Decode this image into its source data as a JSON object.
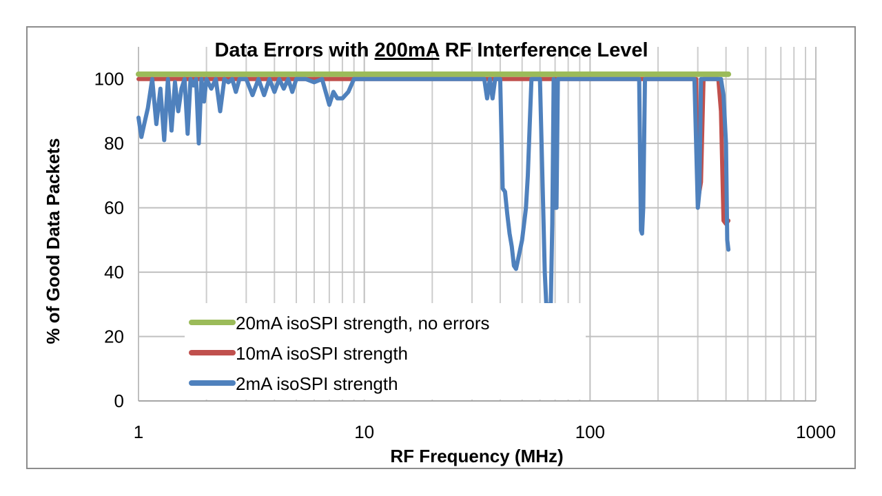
{
  "chart_data": {
    "type": "line",
    "title": {
      "prefix": "Data Errors with ",
      "emphasis": "200mA",
      "suffix": " RF Interference Level"
    },
    "xlabel": "RF Frequency (MHz)",
    "ylabel": "% of Good Data Packets",
    "xscale": "log",
    "xlim": [
      1,
      1000
    ],
    "ylim": [
      0,
      110
    ],
    "xticks": [
      1,
      10,
      100,
      1000
    ],
    "xtick_labels": [
      "1",
      "10",
      "100",
      "1000"
    ],
    "yticks": [
      0,
      20,
      40,
      60,
      80,
      100
    ],
    "ytick_labels": [
      "0",
      "20",
      "40",
      "60",
      "80",
      "100"
    ],
    "grid": true,
    "legend_position": "bottom-left",
    "series": [
      {
        "name": "20mA isoSPI strength, no errors",
        "color": "#9bbb59",
        "x": [
          1,
          410
        ],
        "y": [
          101.5,
          101.5
        ]
      },
      {
        "name": "10mA isoSPI strength",
        "color": "#c0504d",
        "x": [
          1,
          2,
          5,
          9,
          40,
          60,
          70,
          100,
          200,
          280,
          295,
          300,
          310,
          318,
          325,
          340,
          370,
          380,
          390,
          400,
          410
        ],
        "y": [
          100,
          100,
          100,
          100,
          100,
          100,
          100,
          100,
          100,
          100,
          100,
          62,
          68,
          100,
          100,
          100,
          100,
          90,
          56,
          55,
          56
        ]
      },
      {
        "name": "2mA isoSPI strength",
        "color": "#4f81bd",
        "x": [
          1,
          1.03,
          1.06,
          1.1,
          1.15,
          1.2,
          1.25,
          1.3,
          1.35,
          1.4,
          1.45,
          1.5,
          1.55,
          1.6,
          1.65,
          1.7,
          1.75,
          1.8,
          1.85,
          1.9,
          1.95,
          2.0,
          2.1,
          2.2,
          2.3,
          2.4,
          2.5,
          2.6,
          2.7,
          2.8,
          3.0,
          3.2,
          3.4,
          3.6,
          3.8,
          4.0,
          4.2,
          4.4,
          4.6,
          4.8,
          5.0,
          5.5,
          6.0,
          6.5,
          7.0,
          7.3,
          7.6,
          8.0,
          8.5,
          9.0,
          10,
          20,
          34,
          35,
          36,
          37,
          38,
          40,
          41,
          42,
          43,
          44,
          45,
          46,
          47,
          48,
          50,
          52,
          53,
          54,
          55,
          56,
          58,
          60,
          62,
          63,
          64,
          65,
          66,
          67,
          68,
          69,
          70,
          71,
          72,
          73,
          74,
          75,
          80,
          100,
          150,
          165,
          168,
          170,
          172,
          175,
          200,
          280,
          290,
          300,
          305,
          310,
          320,
          340,
          360,
          370,
          380,
          390,
          400,
          405,
          410
        ],
        "y": [
          88,
          82,
          86,
          91,
          100,
          86,
          97,
          81,
          100,
          84,
          99,
          90,
          97,
          100,
          83,
          100,
          98,
          100,
          80,
          100,
          93,
          100,
          97,
          100,
          90,
          100,
          99,
          100,
          96,
          100,
          100,
          95,
          100,
          95,
          100,
          96,
          100,
          97,
          100,
          96,
          100,
          100,
          99,
          100,
          92,
          96,
          94,
          94,
          96,
          100,
          100,
          100,
          100,
          94,
          100,
          94,
          100,
          100,
          66,
          65,
          58,
          52,
          48,
          42,
          41,
          44,
          50,
          60,
          70,
          85,
          100,
          100,
          100,
          100,
          60,
          40,
          30,
          30,
          29,
          30,
          55,
          100,
          60,
          60,
          100,
          100,
          100,
          100,
          100,
          100,
          100,
          100,
          53,
          52,
          60,
          100,
          100,
          100,
          100,
          60,
          65,
          100,
          100,
          100,
          100,
          100,
          100,
          95,
          80,
          50,
          47
        ]
      }
    ]
  }
}
